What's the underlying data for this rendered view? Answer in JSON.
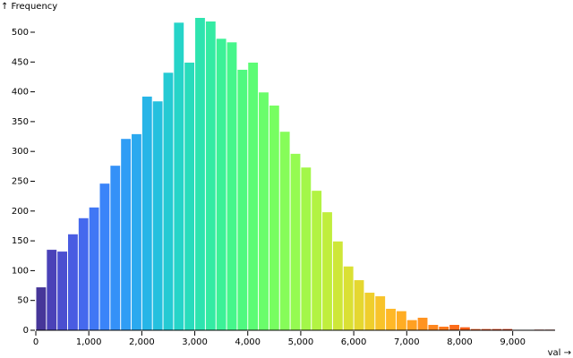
{
  "chart_data": {
    "type": "histogram",
    "y_label": "↑ Frequency",
    "x_label": "val →",
    "bins": [
      0,
      200,
      400,
      600,
      800,
      1000,
      1200,
      1400,
      1600,
      1800,
      2000,
      2200,
      2400,
      2600,
      2800,
      3000,
      3200,
      3400,
      3600,
      3800,
      4000,
      4200,
      4400,
      4600,
      4800,
      5000,
      5200,
      5400,
      5600,
      5800,
      6000,
      6200,
      6400,
      6600,
      6800,
      7000,
      7200,
      7400,
      7600,
      7800,
      8000,
      8200,
      8400,
      8600,
      8800,
      9000,
      9200,
      9400,
      9600,
      9800
    ],
    "values": [
      72,
      135,
      132,
      161,
      188,
      206,
      246,
      276,
      321,
      329,
      392,
      384,
      432,
      516,
      449,
      524,
      518,
      489,
      483,
      437,
      449,
      399,
      377,
      333,
      296,
      273,
      234,
      198,
      149,
      107,
      84,
      63,
      57,
      36,
      32,
      17,
      21,
      9,
      6,
      9,
      5,
      2,
      2,
      2,
      2,
      0,
      0,
      1,
      1
    ],
    "color_scheme": "turbo",
    "xlim": [
      0,
      9800
    ],
    "ylim": [
      0,
      524
    ],
    "xticks": [
      0,
      {
        "value": 1000,
        "label": "1,000"
      },
      {
        "value": 2000,
        "label": "2,000"
      },
      {
        "value": 3000,
        "label": "3,000"
      },
      {
        "value": 4000,
        "label": "4,000"
      },
      {
        "value": 5000,
        "label": "5,000"
      },
      {
        "value": 6000,
        "label": "6,000"
      },
      {
        "value": 7000,
        "label": "7,000"
      },
      {
        "value": 8000,
        "label": "8,000"
      },
      {
        "value": 9000,
        "label": "9,000"
      }
    ],
    "yticks": [
      0,
      50,
      100,
      150,
      200,
      250,
      300,
      350,
      400,
      450,
      500
    ]
  }
}
